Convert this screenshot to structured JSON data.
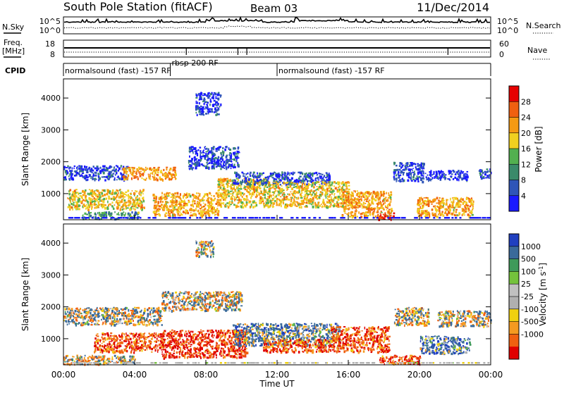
{
  "header": {
    "station": "South Pole Station (fitACF)",
    "beam": "Beam 03",
    "date": "11/Dec/2014"
  },
  "strips": {
    "nsky_label": "N.Sky",
    "nsearch_label": "N.Search",
    "freq_label_1": "Freq.",
    "freq_label_2": "[MHz]",
    "nave_label": "Nave",
    "cpid_label": "CPID",
    "nsky_ticks": [
      "10^5",
      "10^0"
    ],
    "nsearch_ticks": [
      "10^5",
      "10^0"
    ],
    "freq_ticks": [
      "18",
      "8"
    ],
    "nave_ticks": [
      "60",
      "0"
    ],
    "cpid_segments": [
      {
        "label": "normalsound (fast) -157 RF",
        "start_hour": 0.0,
        "end_hour": 6.0
      },
      {
        "label": "rbsp 200 RF",
        "start_hour": 6.0,
        "end_hour": 12.0
      },
      {
        "label": "normalsound (fast) -157 RF",
        "start_hour": 12.0,
        "end_hour": 24.0
      }
    ]
  },
  "x_axis": {
    "label": "Time UT",
    "ticks": [
      "00:00",
      "04:00",
      "08:00",
      "12:00",
      "16:00",
      "20:00",
      "00:00"
    ]
  },
  "power_panel": {
    "ylabel": "Slant Range [km]",
    "yticks": [
      "1000",
      "2000",
      "3000",
      "4000"
    ],
    "colorbar_label": "Power [dB]",
    "colorbar_ticks": [
      "4",
      "8",
      "12",
      "16",
      "20",
      "24",
      "28"
    ]
  },
  "velocity_panel": {
    "ylabel": "Slant Range [km]",
    "yticks": [
      "1000",
      "2000",
      "3000",
      "4000"
    ],
    "colorbar_label": "Velocity [m s",
    "colorbar_label_sup": "-1",
    "colorbar_label_end": "]",
    "colorbar_ticks": [
      "1000",
      "500",
      "100",
      "25",
      "-25",
      "-100",
      "-500",
      "-1000"
    ]
  },
  "colors": {
    "power_scale": [
      "#1a1aff",
      "#2f55b8",
      "#3a8a6a",
      "#52b050",
      "#f0d020",
      "#f59a12",
      "#f06010",
      "#e60000"
    ],
    "velocity_scale": [
      "#2040c0",
      "#3a6a9a",
      "#3f9a5a",
      "#74c23c",
      "#c0c0c0",
      "#b0b0b0",
      "#f0d010",
      "#f59a20",
      "#f06010",
      "#e00000"
    ]
  },
  "chart_data": [
    {
      "type": "heatmap",
      "name": "Power",
      "x_unit": "hour UT",
      "y_unit": "km",
      "xlim": [
        0,
        24
      ],
      "ylim": [
        180,
        4600
      ],
      "zlim": [
        0,
        30
      ],
      "approximate_regions": [
        {
          "x": [
            0.0,
            3.6
          ],
          "y": [
            1450,
            1900
          ],
          "z": 4
        },
        {
          "x": [
            0.2,
            4.5
          ],
          "y": [
            520,
            1150
          ],
          "z": 18
        },
        {
          "x": [
            1.0,
            4.2
          ],
          "y": [
            220,
            450
          ],
          "z": 10
        },
        {
          "x": [
            3.3,
            6.3
          ],
          "y": [
            1450,
            1850
          ],
          "z": 21
        },
        {
          "x": [
            5.0,
            8.8
          ],
          "y": [
            320,
            1050
          ],
          "z": 20
        },
        {
          "x": [
            7.0,
            9.8
          ],
          "y": [
            1800,
            2500
          ],
          "z": 4
        },
        {
          "x": [
            7.4,
            8.8
          ],
          "y": [
            3500,
            4200
          ],
          "z": 3
        },
        {
          "x": [
            8.6,
            11.5
          ],
          "y": [
            600,
            1500
          ],
          "z": 18
        },
        {
          "x": [
            9.5,
            15.0
          ],
          "y": [
            1300,
            1700
          ],
          "z": 5
        },
        {
          "x": [
            11.5,
            16.0
          ],
          "y": [
            600,
            1400
          ],
          "z": 18
        },
        {
          "x": [
            15.6,
            18.4
          ],
          "y": [
            300,
            1100
          ],
          "z": 20
        },
        {
          "x": [
            17.6,
            18.6
          ],
          "y": [
            220,
            420
          ],
          "z": 27
        },
        {
          "x": [
            18.5,
            20.2
          ],
          "y": [
            1400,
            2000
          ],
          "z": 4
        },
        {
          "x": [
            19.8,
            23.0
          ],
          "y": [
            300,
            900
          ],
          "z": 20
        },
        {
          "x": [
            20.0,
            22.7
          ],
          "y": [
            1450,
            1750
          ],
          "z": 3
        },
        {
          "x": [
            23.3,
            24.0
          ],
          "y": [
            1500,
            1800
          ],
          "z": 6
        }
      ]
    },
    {
      "type": "heatmap",
      "name": "Velocity",
      "x_unit": "hour UT",
      "y_unit": "km",
      "xlim": [
        0,
        24
      ],
      "ylim": [
        180,
        4600
      ],
      "zlim": [
        -1000,
        1000
      ],
      "approximate_regions": [
        {
          "x": [
            0.0,
            5.5
          ],
          "y": [
            1450,
            2000
          ],
          "z": 0
        },
        {
          "x": [
            1.7,
            5.6
          ],
          "y": [
            600,
            1200
          ],
          "z": -500
        },
        {
          "x": [
            0.0,
            4.0
          ],
          "y": [
            220,
            500
          ],
          "z": -80
        },
        {
          "x": [
            5.5,
            10.0
          ],
          "y": [
            1900,
            2500
          ],
          "z": 0
        },
        {
          "x": [
            5.5,
            10.3
          ],
          "y": [
            420,
            1300
          ],
          "z": -600
        },
        {
          "x": [
            7.4,
            8.4
          ],
          "y": [
            3600,
            4100
          ],
          "z": -50
        },
        {
          "x": [
            9.5,
            15.5
          ],
          "y": [
            800,
            1500
          ],
          "z": 200
        },
        {
          "x": [
            11.2,
            15.0
          ],
          "y": [
            600,
            1000
          ],
          "z": -500
        },
        {
          "x": [
            15.0,
            18.3
          ],
          "y": [
            600,
            1400
          ],
          "z": -500
        },
        {
          "x": [
            17.7,
            20.0
          ],
          "y": [
            220,
            500
          ],
          "z": -500
        },
        {
          "x": [
            18.5,
            20.5
          ],
          "y": [
            1450,
            2000
          ],
          "z": 0
        },
        {
          "x": [
            20.0,
            22.8
          ],
          "y": [
            550,
            1100
          ],
          "z": 300
        },
        {
          "x": [
            21.0,
            24.0
          ],
          "y": [
            1400,
            1900
          ],
          "z": 0
        }
      ]
    }
  ]
}
